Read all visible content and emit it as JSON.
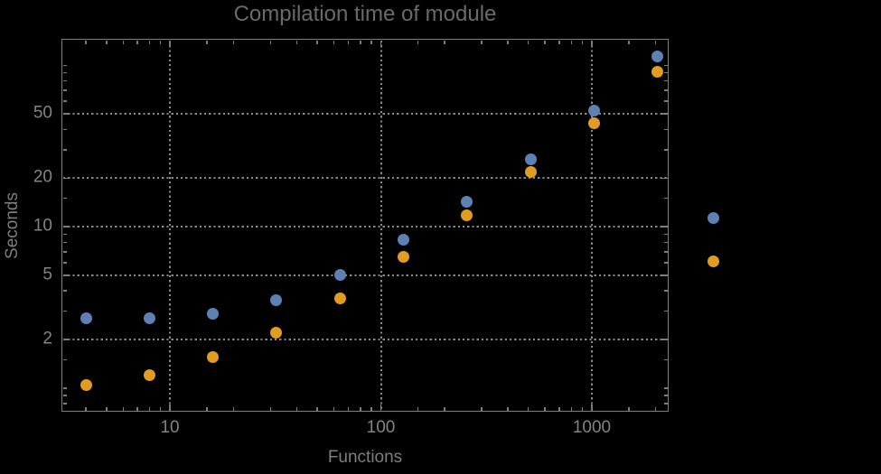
{
  "chart": {
    "title": "Compilation time of module",
    "x_axis_title": "Functions",
    "y_axis_title": "Seconds"
  },
  "chart_data": {
    "type": "scatter",
    "title": "Compilation time of module",
    "xlabel": "Functions",
    "ylabel": "Seconds",
    "x_scale": "log",
    "y_scale": "log",
    "x_ticks": {
      "major": [
        10,
        100,
        1000
      ],
      "labels": [
        "10",
        "100",
        "1000"
      ]
    },
    "y_ticks": {
      "major": [
        2,
        5,
        10,
        20,
        50
      ],
      "labels": [
        "2",
        "5",
        "10",
        "20",
        "50"
      ]
    },
    "xlim": [
      3.06,
      2313
    ],
    "ylim": [
      0.714,
      146
    ],
    "grid": "dotted-at-major-ticks",
    "x": [
      4,
      8,
      16,
      32,
      64,
      128,
      256,
      512,
      1024,
      2048
    ],
    "series": [
      {
        "name": "series-blue",
        "color": "#5E81B5",
        "values": [
          2.7,
          2.7,
          2.9,
          3.5,
          5.05,
          8.3,
          14.2,
          26,
          52.5,
          113
        ]
      },
      {
        "name": "series-orange",
        "color": "#E19C24",
        "values": [
          1.05,
          1.2,
          1.55,
          2.2,
          3.6,
          6.5,
          11.8,
          21.8,
          43.5,
          91.5
        ]
      }
    ],
    "legend": {
      "position": "right-outside",
      "markers": [
        {
          "series": "series-blue",
          "color": "#5E81B5"
        },
        {
          "series": "series-orange",
          "color": "#E19C24"
        }
      ]
    }
  },
  "colors": {
    "background": "#000000",
    "frame": "#7d7d7d",
    "gridline": "#8a8a8a",
    "tick_label": "#848484",
    "axis_title": "#7e7e7e",
    "title": "#6a6a6a"
  }
}
